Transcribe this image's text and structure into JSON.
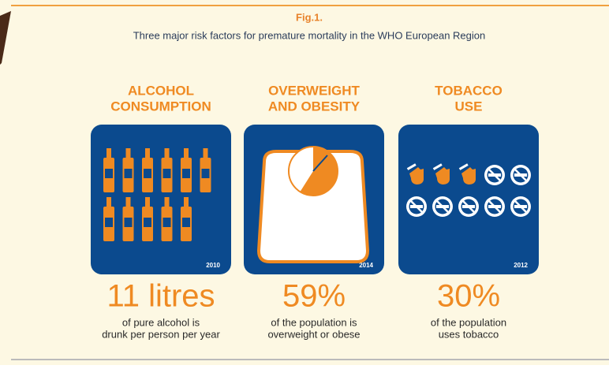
{
  "figure_label": "Fig.1.",
  "title": "Three major risk factors for premature mortality in the WHO European Region",
  "panels": [
    {
      "heading": [
        "ALCOHOL",
        "CONSUMPTION"
      ],
      "year": "2010",
      "stat": "11 litres",
      "value": 11,
      "description": [
        "of pure alcohol is",
        "drunk per person per year"
      ]
    },
    {
      "heading": [
        "OVERWEIGHT",
        "AND OBESITY"
      ],
      "year": "2014",
      "stat": "59%",
      "value": 59,
      "description": [
        "of the population is",
        "overweight or obese"
      ]
    },
    {
      "heading": [
        "TOBACCO",
        "USE"
      ],
      "year": "2012",
      "stat": "30%",
      "value": 30,
      "description": [
        "of the population",
        "uses tobacco"
      ]
    }
  ]
}
